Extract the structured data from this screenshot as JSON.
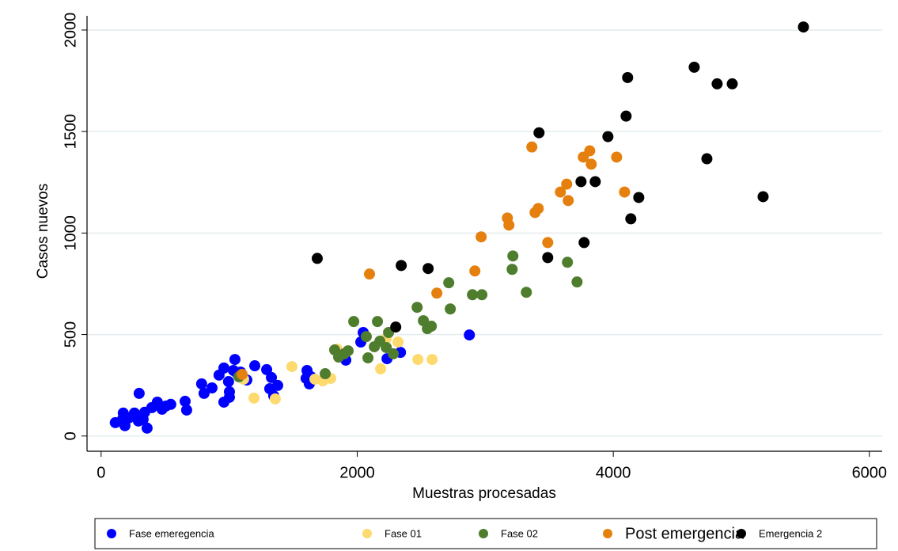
{
  "chart_data": {
    "type": "scatter",
    "x_label": "Muestras procesadas",
    "y_label": "Casos nuevos",
    "xlim": [
      -110,
      6100
    ],
    "ylim": [
      -75,
      2070
    ],
    "xticks": [
      0,
      2000,
      4000,
      6000
    ],
    "yticks": [
      0,
      500,
      1000,
      1500,
      2000
    ],
    "grid": true,
    "legend": "bottom",
    "series": [
      {
        "name": "Fase emeregencia",
        "color": "#0000ff",
        "x": [
          2047,
          2028,
          2876,
          2338,
          2233,
          1911,
          1045,
          1200,
          1293,
          1138,
          959,
          1064,
          995,
          921,
          1002,
          866,
          959,
          1002,
          785,
          804,
          1033,
          1330,
          1379,
          1317,
          1348,
          1608,
          1601,
          1626,
          1639,
          1089,
          656,
          668,
          544,
          507,
          439,
          476,
          396,
          340,
          297,
          260,
          328,
          359,
          216,
          173,
          186,
          111,
          291,
          167
        ],
        "values": [
          510,
          463,
          498,
          412,
          381,
          374,
          377,
          346,
          327,
          276,
          335,
          307,
          268,
          300,
          218,
          237,
          167,
          191,
          257,
          210,
          323,
          288,
          249,
          233,
          198,
          323,
          284,
          257,
          292,
          315,
          171,
          128,
          156,
          148,
          167,
          132,
          140,
          117,
          210,
          113,
          82,
          39,
          89,
          113,
          51,
          66,
          74,
          82
        ]
      },
      {
        "name": "Fase 01",
        "color": "#fdd96e",
        "x": [
          2226,
          2319,
          1843,
          1490,
          2183,
          2474,
          2585,
          1670,
          1793,
          1732,
          1194,
          1360,
          1113
        ],
        "values": [
          479,
          463,
          428,
          342,
          331,
          377,
          377,
          280,
          284,
          272,
          187,
          183,
          280
        ]
      },
      {
        "name": "Fase 02",
        "color": "#4f7d2e",
        "x": [
          3216,
          3210,
          3642,
          3717,
          2715,
          3321,
          2900,
          2974,
          2727,
          2468,
          2517,
          2579,
          2548,
          1973,
          2158,
          2071,
          2245,
          2177,
          2227,
          2134,
          2282,
          2084,
          1824,
          1898,
          1929,
          1855,
          1750,
          1076
        ],
        "values": [
          887,
          821,
          856,
          759,
          755,
          708,
          696,
          696,
          626,
          634,
          568,
          541,
          529,
          564,
          564,
          490,
          510,
          467,
          436,
          440,
          405,
          385,
          424,
          405,
          420,
          389,
          307,
          292
        ]
      },
      {
        "name": "Post emergencia",
        "color": "#e5800f",
        "x": [
          3364,
          3816,
          3766,
          3828,
          4026,
          3636,
          3587,
          3648,
          3414,
          3389,
          3173,
          3185,
          2968,
          3488,
          4088,
          2096,
          2919,
          2622,
          1101
        ],
        "values": [
          1424,
          1405,
          1374,
          1339,
          1374,
          1241,
          1202,
          1160,
          1121,
          1101,
          1074,
          1039,
          981,
          953,
          1202,
          798,
          813,
          704,
          304
        ]
      },
      {
        "name": "Emergencia 2",
        "color": "#000000",
        "x": [
          5485,
          4632,
          4811,
          4929,
          4112,
          4100,
          3958,
          3420,
          4731,
          3748,
          3859,
          4199,
          5170,
          4137,
          3772,
          3488,
          1688,
          2344,
          2554,
          2301
        ],
        "values": [
          2015,
          1817,
          1735,
          1735,
          1766,
          1576,
          1475,
          1494,
          1366,
          1253,
          1253,
          1175,
          1179,
          1070,
          953,
          879,
          875,
          840,
          825,
          537
        ]
      }
    ]
  }
}
